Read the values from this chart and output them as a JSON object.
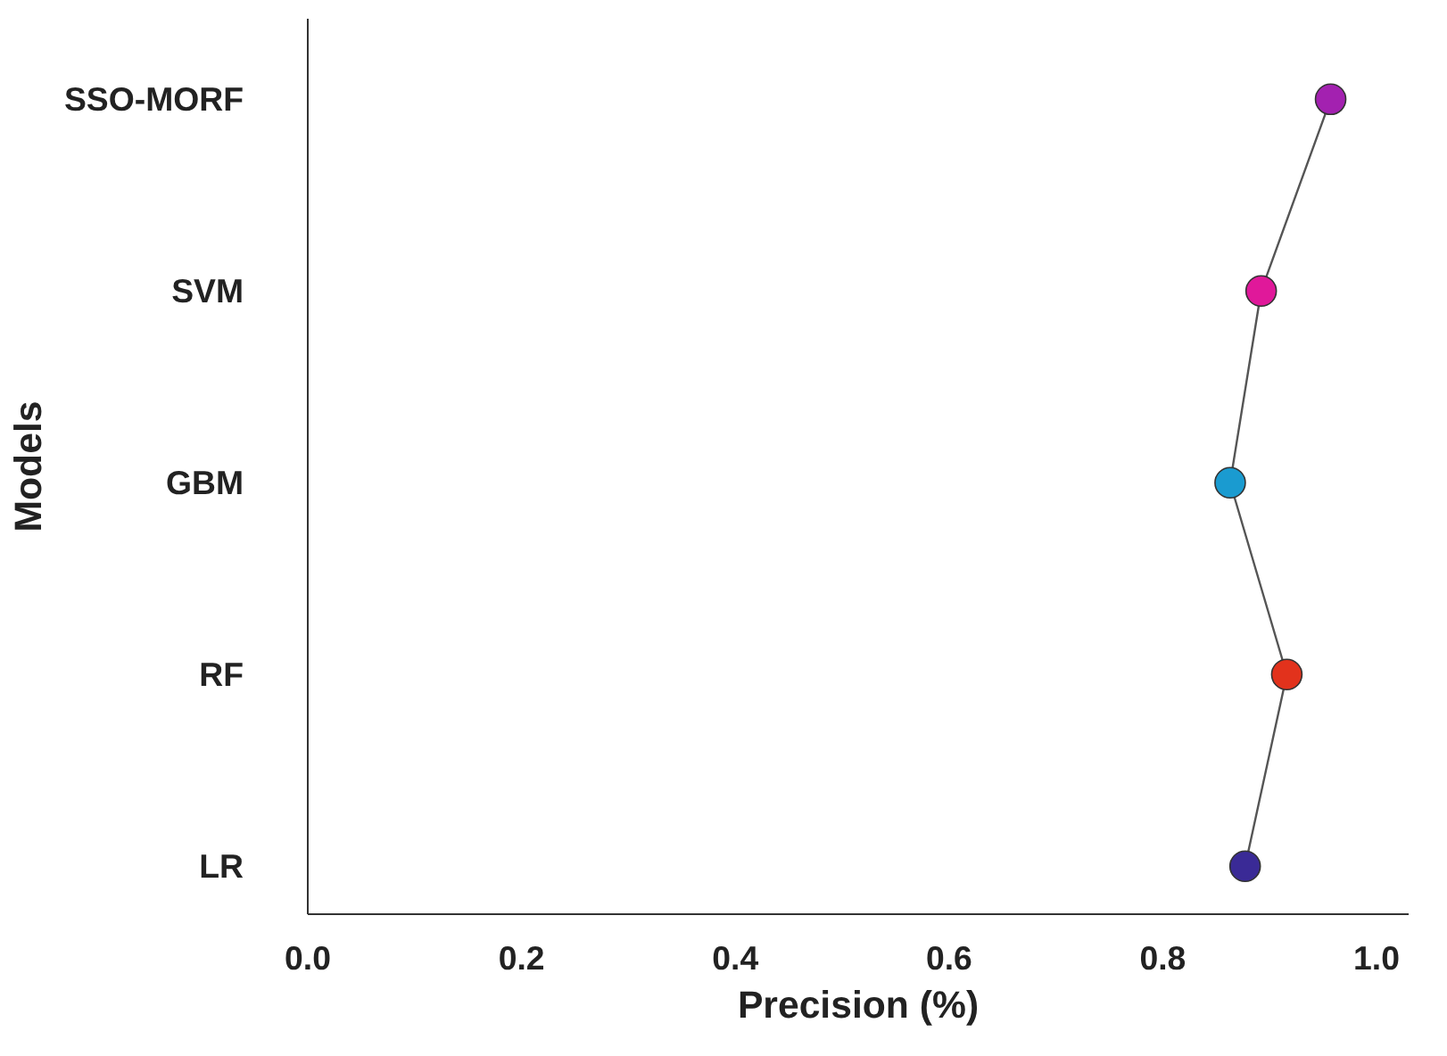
{
  "chart_data": {
    "type": "line",
    "orientation": "horizontal",
    "xlabel": "Precision (%)",
    "ylabel": "Models",
    "categories": [
      "SSO-MORF",
      "SVM",
      "GBM",
      "RF",
      "LR"
    ],
    "values": [
      0.957,
      0.892,
      0.863,
      0.916,
      0.877
    ],
    "color": "#555555",
    "colors": [
      "#a321b0",
      "#e0189a",
      "#1a9bd0",
      "#e2321c",
      "#3a2a96"
    ],
    "marker": "circle",
    "line_style": "solid",
    "xlim": [
      0,
      1.03
    ],
    "xticks": [
      {
        "value": 0,
        "label": "0.0"
      },
      0.2,
      0.4,
      0.6,
      0.8,
      {
        "value": 1,
        "label": "1.0"
      }
    ],
    "grid": false
  }
}
